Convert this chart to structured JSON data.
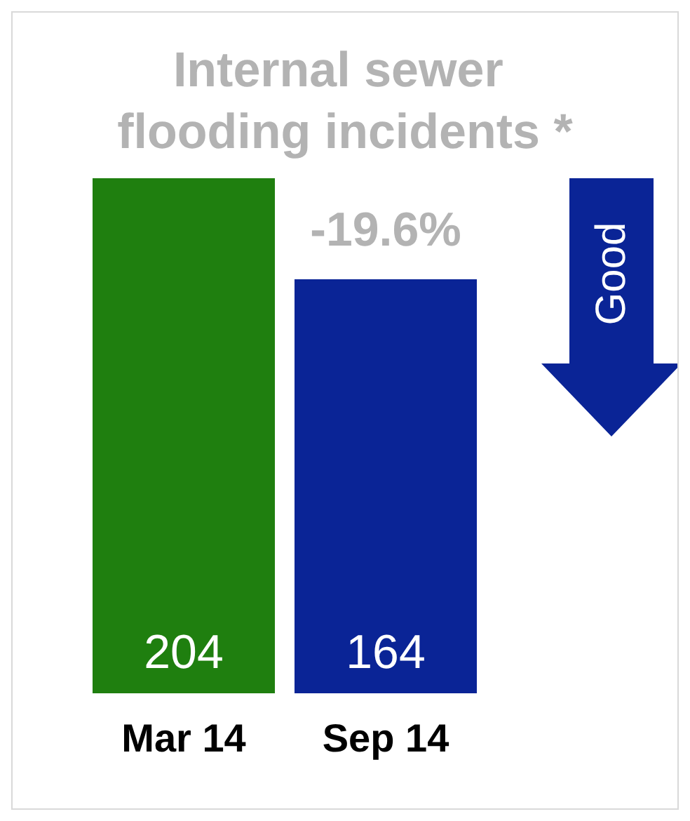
{
  "chart_data": {
    "type": "bar",
    "title": "Internal sewer flooding incidents *",
    "categories": [
      "Mar 14",
      "Sep 14"
    ],
    "values": [
      204,
      164
    ],
    "colors": [
      "#1f7f0f",
      "#0a2496"
    ],
    "data_labels": true,
    "annotations": [
      "-19.6%",
      "Good"
    ]
  }
}
